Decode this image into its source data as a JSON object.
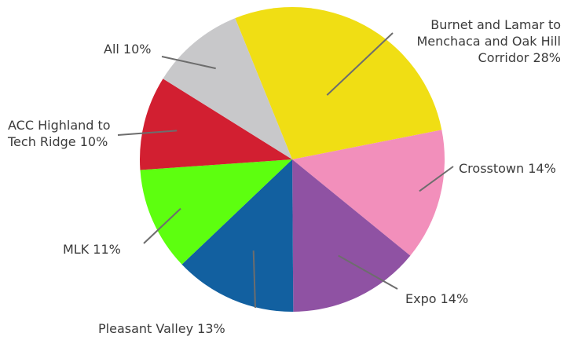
{
  "chart_data": {
    "type": "pie",
    "title": "",
    "slices": [
      {
        "name": "Burnet and Lamar to Menchaca and Oak Hill Corridor",
        "value": 28,
        "color": "#f0de14",
        "label_lines": [
          "Burnet and Lamar to",
          "Menchaca and Oak Hill",
          "Corridor 28%"
        ]
      },
      {
        "name": "Crosstown",
        "value": 14,
        "color": "#f28fbb",
        "label_lines": [
          "Crosstown 14%"
        ]
      },
      {
        "name": "Expo",
        "value": 14,
        "color": "#8f52a3",
        "label_lines": [
          "Expo 14%"
        ]
      },
      {
        "name": "Pleasant Valley",
        "value": 13,
        "color": "#1260a0",
        "label_lines": [
          "Pleasant Valley 13%"
        ]
      },
      {
        "name": "MLK",
        "value": 11,
        "color": "#5dff0f",
        "label_lines": [
          "MLK 11%"
        ]
      },
      {
        "name": "ACC Highland to Tech Ridge",
        "value": 10,
        "color": "#d21f31",
        "label_lines": [
          "ACC Highland to",
          "Tech Ridge 10%"
        ]
      },
      {
        "name": "All",
        "value": 10,
        "color": "#c8c8ca",
        "label_lines": [
          "All 10%"
        ]
      }
    ]
  }
}
